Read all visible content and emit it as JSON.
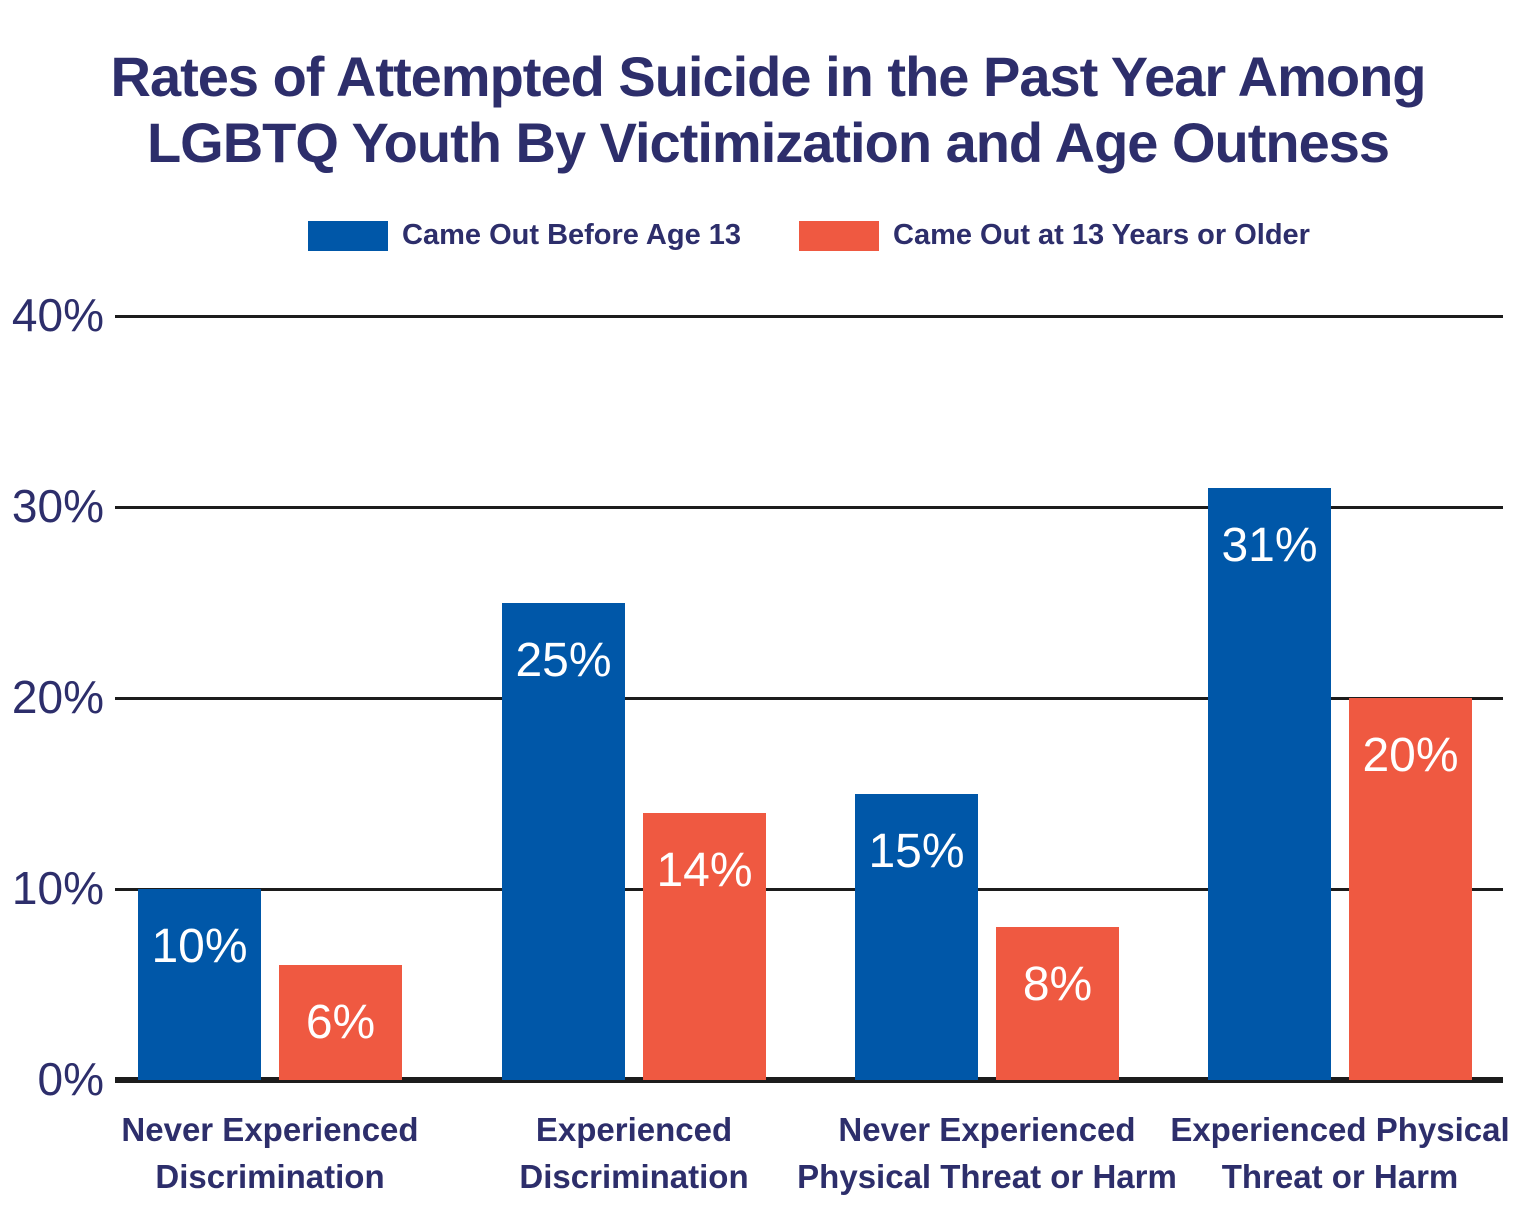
{
  "title": {
    "lines": [
      "Rates of Attempted Suicide in the Past Year Among",
      "LGBTQ Youth By Victimization and Age Outness"
    ]
  },
  "legend": {
    "items": [
      {
        "label": "Came Out Before Age 13",
        "color": "#0057A8"
      },
      {
        "label": "Came Out at 13 Years or Older",
        "color": "#EF5941"
      }
    ]
  },
  "y_axis": {
    "tick_labels_bottom_to_top": [
      "0%",
      "10%",
      "20%",
      "30%",
      "40%"
    ]
  },
  "colors": {
    "navy_text": "#2d2e6b",
    "gridline": "#1c1c1c",
    "bar_blue": "#0057A8",
    "bar_orange": "#EF5941",
    "value_label": "#ffffff",
    "background": "#ffffff"
  },
  "chart_data": {
    "type": "bar",
    "title": "Rates of Attempted Suicide in the Past Year Among LGBTQ Youth By Victimization and Age Outness",
    "categories": [
      "Never Experienced Discrimination",
      "Experienced Discrimination",
      "Never Experienced Physical Threat or Harm",
      "Experienced Physical Threat or Harm"
    ],
    "category_label_lines": [
      [
        "Never Experienced",
        "Discrimination"
      ],
      [
        "Experienced",
        "Discrimination"
      ],
      [
        "Never Experienced",
        "Physical Threat or Harm"
      ],
      [
        "Experienced Physical",
        "Threat or Harm"
      ]
    ],
    "series": [
      {
        "name": "Came Out Before Age 13",
        "color": "#0057A8",
        "values": [
          10,
          25,
          15,
          31
        ]
      },
      {
        "name": "Came Out at 13 Years or Older",
        "color": "#EF5941",
        "values": [
          6,
          14,
          8,
          20
        ]
      }
    ],
    "value_suffix": "%",
    "xlabel": "",
    "ylabel": "",
    "ylim": [
      0,
      40
    ],
    "yticks": [
      0,
      10,
      20,
      30,
      40
    ],
    "grid": true,
    "legend_position": "top"
  }
}
